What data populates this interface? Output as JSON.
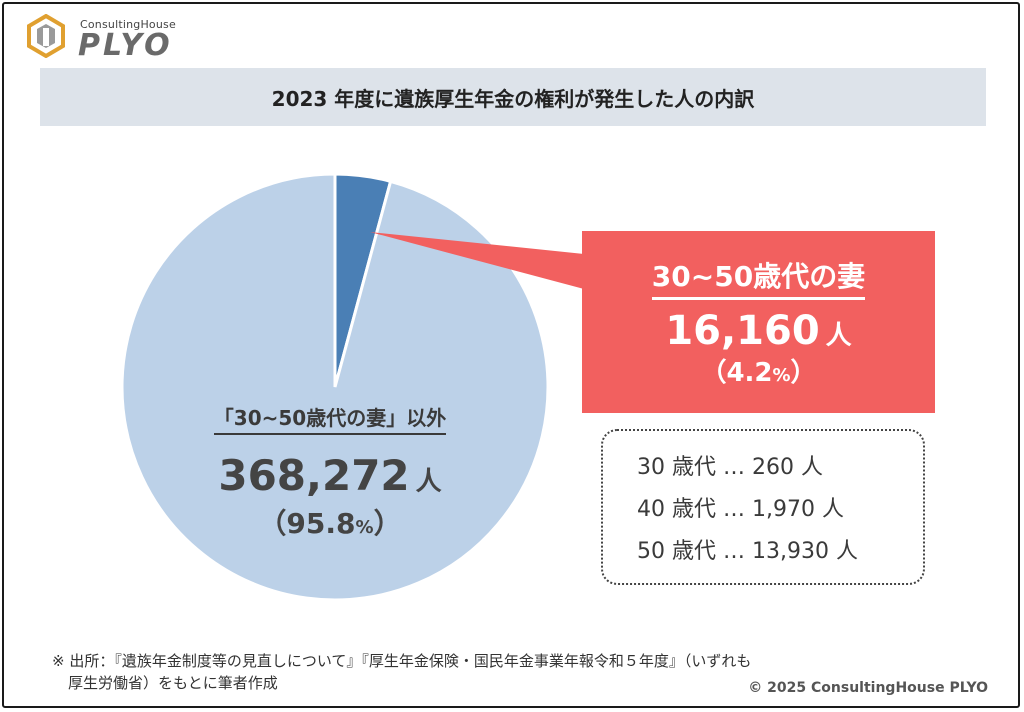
{
  "logo": {
    "small": "ConsultingHouse",
    "big": "PLYO"
  },
  "title": "2023 年度に遺族厚生年金の権利が発生した人の内訳",
  "chart_data": {
    "type": "pie",
    "title": "2023 年度に遺族厚生年金の権利が発生した人の内訳",
    "slices": [
      {
        "label": "30~50歳代の妻",
        "value": 16160,
        "percent": 4.2,
        "color": "#4a7fb5"
      },
      {
        "label": "「30~50歳代の妻」以外",
        "value": 368272,
        "percent": 95.8,
        "color": "#bcd1e8"
      }
    ]
  },
  "pie_label": {
    "category": "「30~50歳代の妻」以外",
    "count": "368,272",
    "unit": "人",
    "pct_open": "（95.8",
    "pct_sign": "%",
    "pct_close": "）"
  },
  "callout": {
    "category": "30~50歳代の妻",
    "count": "16,160",
    "unit": "人",
    "pct_open": "（4.2",
    "pct_sign": "%",
    "pct_close": "）",
    "color": "#f2605f"
  },
  "breakdown": [
    {
      "age": "30 歳代",
      "dots": "…",
      "count": "260",
      "unit": "人"
    },
    {
      "age": "40 歳代",
      "dots": "…",
      "count": "1,970",
      "unit": "人"
    },
    {
      "age": "50 歳代",
      "dots": "…",
      "count": "13,930",
      "unit": "人"
    }
  ],
  "footnote": {
    "line1": "※ 出所：『遺族年金制度等の見直しについて』『厚生年金保険・国民年金事業年報令和５年度』（いずれも",
    "line2": "厚生労働省）をもとに筆者作成"
  },
  "copyright": "© 2025 ConsultingHouse PLYO"
}
